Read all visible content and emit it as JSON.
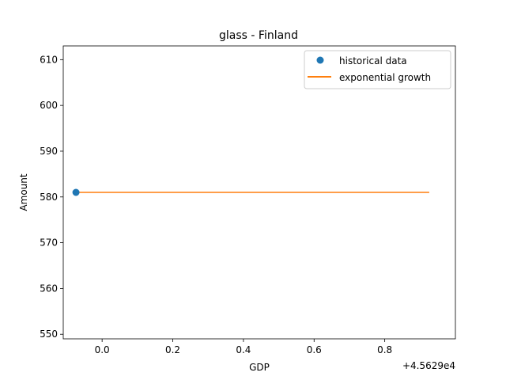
{
  "chart_data": {
    "type": "line",
    "title": "glass - Finland",
    "xlabel": "GDP",
    "ylabel": "Amount",
    "x_offset_label": "+4.5629e4",
    "x_tick_labels": [
      "0.0",
      "0.2",
      "0.4",
      "0.6",
      "0.8"
    ],
    "y_tick_labels": [
      "550",
      "560",
      "570",
      "580",
      "590",
      "600",
      "610"
    ],
    "xlim": [
      45628.89,
      45630.0
    ],
    "ylim": [
      549,
      613
    ],
    "x_ticks": [
      45629.0,
      45629.2,
      45629.4,
      45629.6,
      45629.8
    ],
    "y_ticks": [
      550,
      560,
      570,
      580,
      590,
      600,
      610
    ],
    "grid": false,
    "legend_position": "upper right",
    "series": [
      {
        "name": "historical data",
        "kind": "scatter",
        "color": "#1f77b4",
        "points": [
          [
            45628.926,
            581
          ]
        ]
      },
      {
        "name": "exponential growth",
        "kind": "line",
        "color": "#ff7f0e",
        "points": [
          [
            45628.926,
            581
          ],
          [
            45629.926,
            581
          ]
        ]
      }
    ]
  }
}
